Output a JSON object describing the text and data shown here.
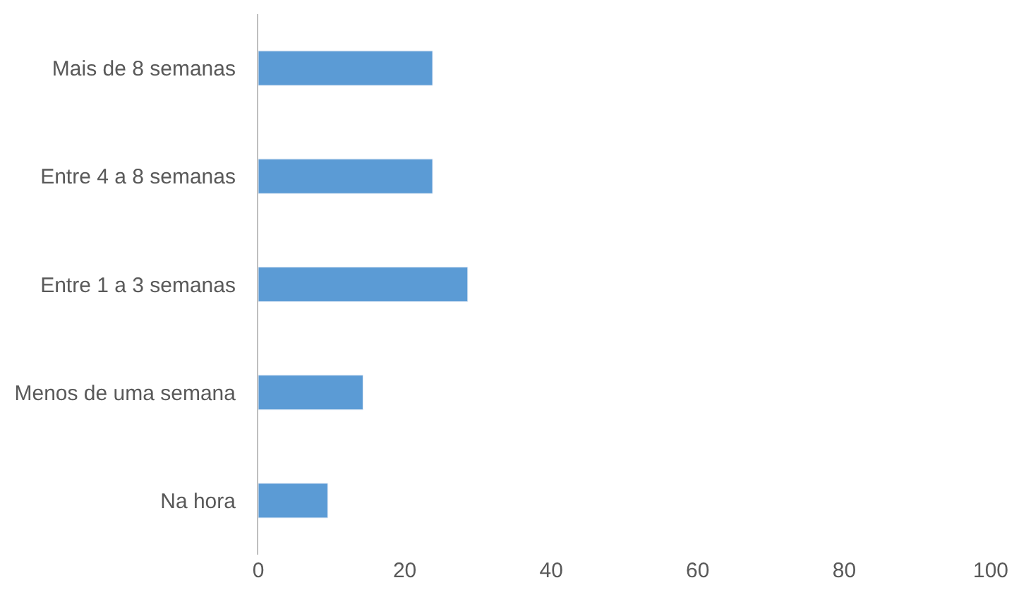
{
  "chart_data": {
    "type": "bar",
    "orientation": "horizontal",
    "categories": [
      "Mais de 8 semanas",
      "Entre 4 a 8 semanas",
      "Entre 1 a 3 semanas",
      "Menos de uma semana",
      "Na hora"
    ],
    "values": [
      23.8,
      23.8,
      28.6,
      14.3,
      9.5
    ],
    "color": "#5b9bd5",
    "xlim": [
      0,
      100
    ],
    "xticks": [
      0,
      20,
      40,
      60,
      80,
      100
    ]
  }
}
